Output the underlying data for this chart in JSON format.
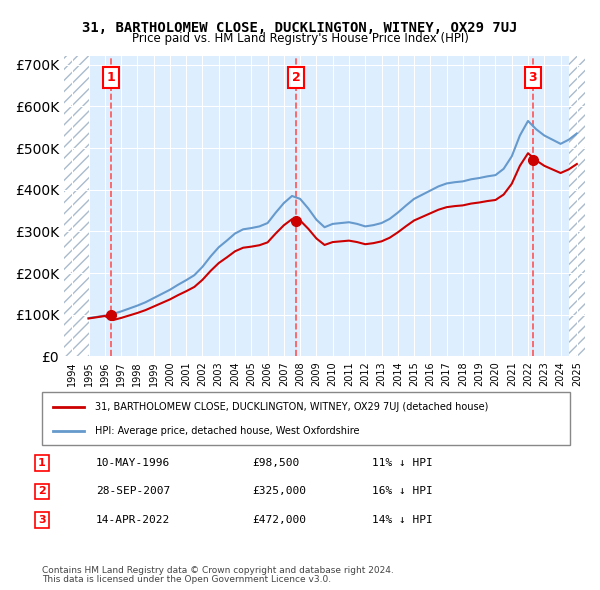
{
  "title": "31, BARTHOLOMEW CLOSE, DUCKLINGTON, WITNEY, OX29 7UJ",
  "subtitle": "Price paid vs. HM Land Registry's House Price Index (HPI)",
  "legend_line1": "31, BARTHOLOMEW CLOSE, DUCKLINGTON, WITNEY, OX29 7UJ (detached house)",
  "legend_line2": "HPI: Average price, detached house, West Oxfordshire",
  "footer1": "Contains HM Land Registry data © Crown copyright and database right 2024.",
  "footer2": "This data is licensed under the Open Government Licence v3.0.",
  "transactions": [
    {
      "num": 1,
      "date": "10-MAY-1996",
      "price": 98500,
      "x": 1996.36,
      "hpi_pct": "11% ↓ HPI"
    },
    {
      "num": 2,
      "date": "28-SEP-2007",
      "price": 325000,
      "x": 2007.74,
      "hpi_pct": "16% ↓ HPI"
    },
    {
      "num": 3,
      "date": "14-APR-2022",
      "price": 472000,
      "x": 2022.28,
      "hpi_pct": "14% ↓ HPI"
    }
  ],
  "ylim": [
    0,
    720000
  ],
  "xlim": [
    1993.5,
    2025.5
  ],
  "hpi_color": "#6699cc",
  "price_color": "#cc0000",
  "hatch_color": "#ccddee",
  "bg_color": "#ddeeff",
  "grid_color": "#ffffff",
  "transaction_line_color": "#ff4444"
}
